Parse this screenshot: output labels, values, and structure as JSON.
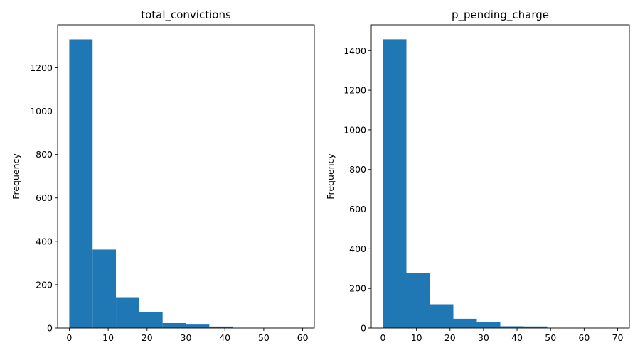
{
  "chart_data": [
    {
      "type": "bar",
      "title": "total_convictions",
      "xlabel": "",
      "ylabel": "Frequency",
      "bin_edges": [
        0,
        6,
        12,
        18,
        24,
        30,
        36,
        42,
        48,
        54,
        60
      ],
      "values": [
        1331,
        362,
        139,
        73,
        23,
        16,
        7,
        1,
        1,
        1
      ],
      "xlim": [
        -3,
        63
      ],
      "ylim": [
        0,
        1398
      ],
      "xticks": [
        0,
        10,
        20,
        30,
        40,
        50,
        60
      ],
      "yticks": [
        0,
        200,
        400,
        600,
        800,
        1000,
        1200
      ],
      "color": "#1f77b4",
      "grid": false
    },
    {
      "type": "bar",
      "title": "p_pending_charge",
      "xlabel": "",
      "ylabel": "Frequency",
      "bin_edges": [
        0,
        7,
        14,
        21,
        28,
        35,
        42,
        49,
        56,
        63,
        70
      ],
      "values": [
        1457,
        277,
        120,
        47,
        30,
        9,
        8,
        1,
        1,
        1
      ],
      "xlim": [
        -3.5,
        73.5
      ],
      "ylim": [
        0,
        1530
      ],
      "xticks": [
        0,
        10,
        20,
        30,
        40,
        50,
        60,
        70
      ],
      "yticks": [
        0,
        200,
        400,
        600,
        800,
        1000,
        1200,
        1400
      ],
      "color": "#1f77b4",
      "grid": false
    }
  ]
}
